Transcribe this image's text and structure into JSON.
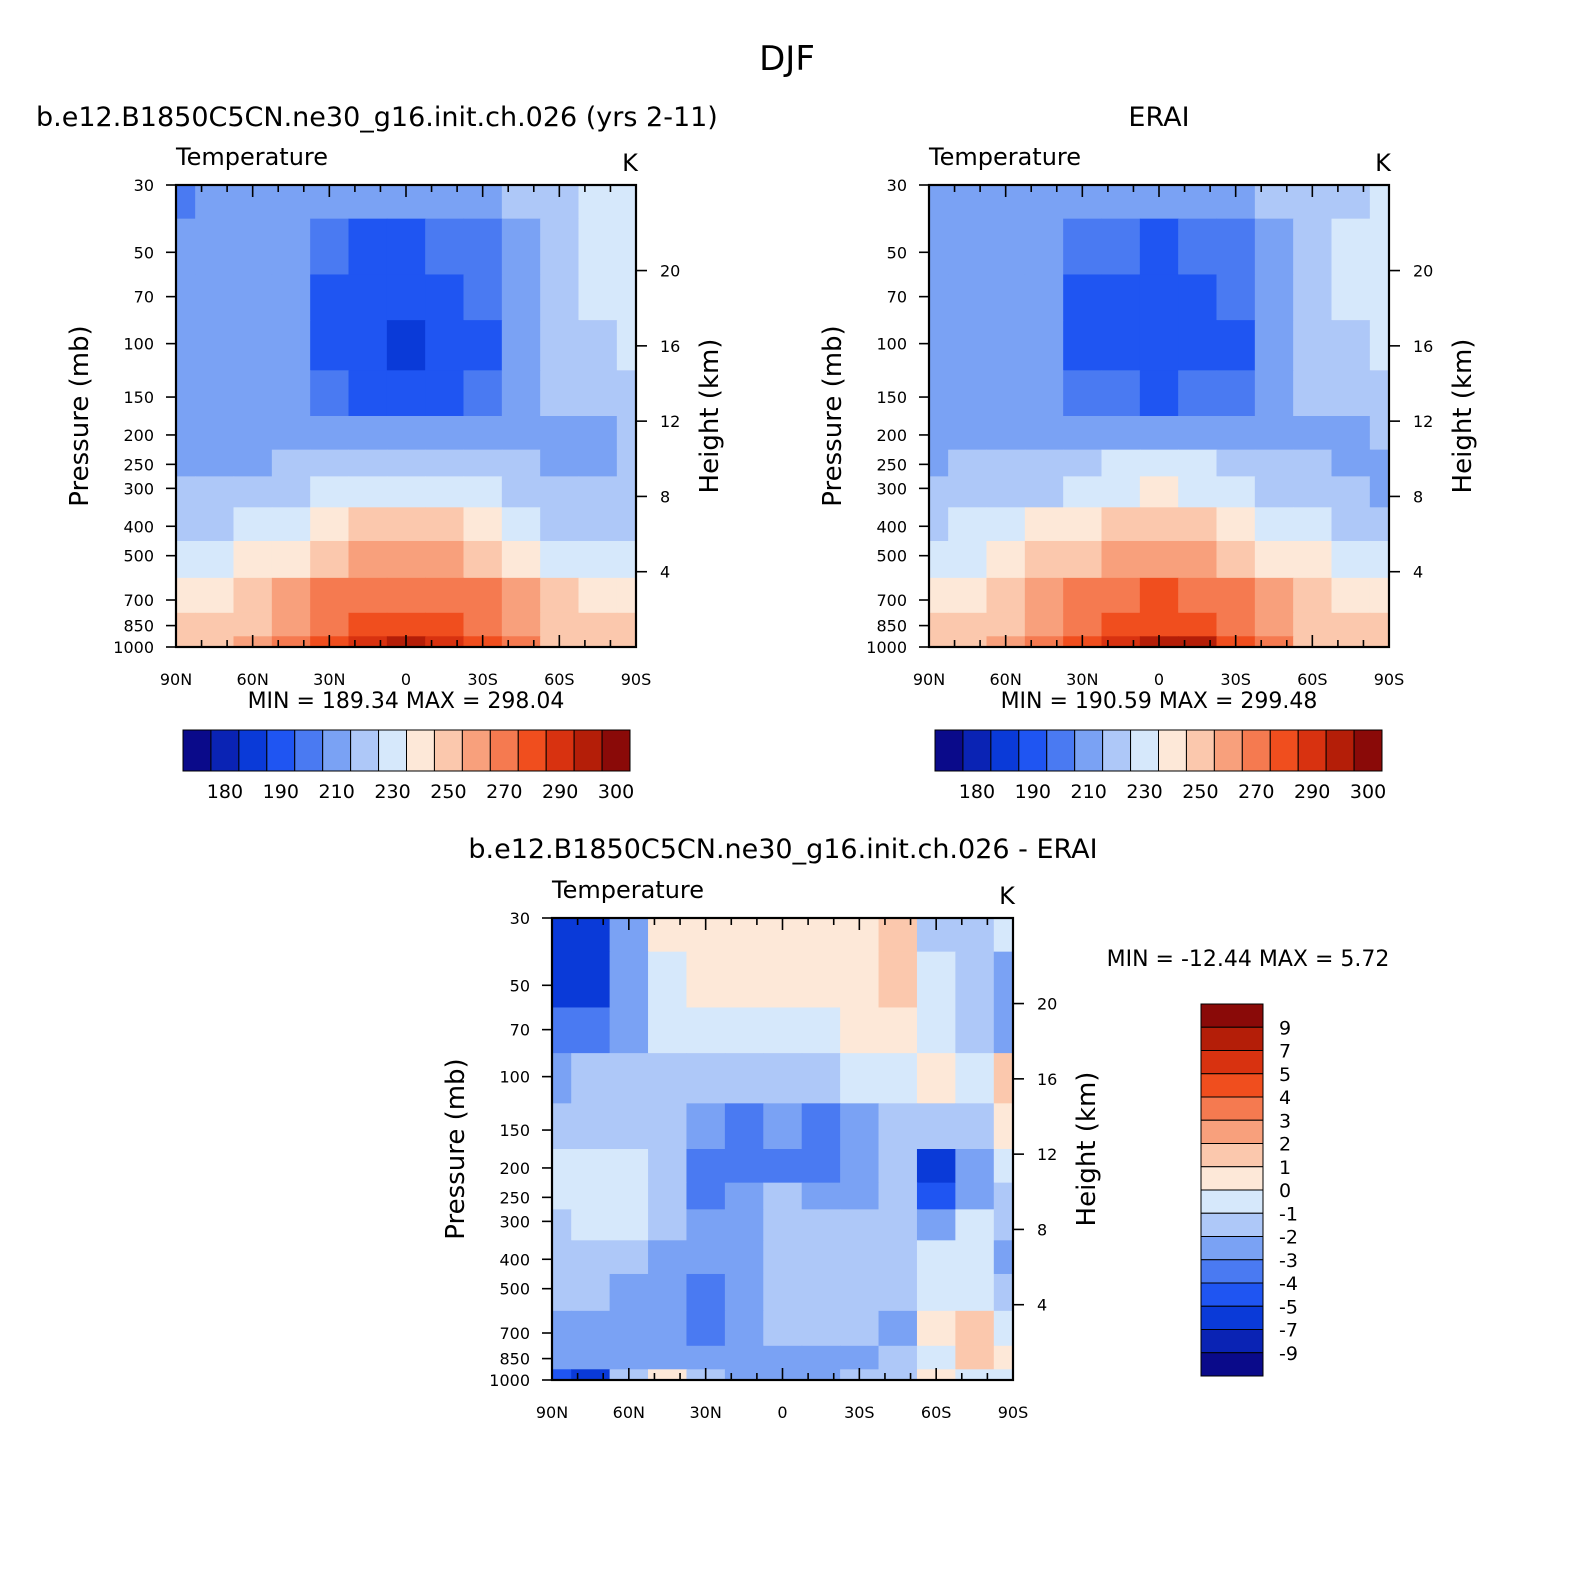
{
  "figure_title": "DJF",
  "colors": {
    "temperature_levels": [
      "#0a0a8a",
      "#0a23b4",
      "#0a3ad8",
      "#1f55f2",
      "#4a7af2",
      "#7aa2f4",
      "#aec8f8",
      "#d6e8fb",
      "#fde8d8",
      "#fbc8ad",
      "#f8a07c",
      "#f57a50",
      "#f04e1e",
      "#d83210",
      "#b41e08",
      "#8a0a08"
    ],
    "difference_levels": [
      "#0a0a8a",
      "#0a23b4",
      "#0a3ad8",
      "#1f55f2",
      "#4a7af2",
      "#7aa2f4",
      "#aec8f8",
      "#d6e8fb",
      "#fde8d8",
      "#fbc8ad",
      "#f8a07c",
      "#f57a50",
      "#f04e1e",
      "#d83210",
      "#b41e08",
      "#8a0a08"
    ]
  },
  "panels": [
    {
      "title": "b.e12.B1850C5CN.ne30_g16.init.ch.026 (yrs 2-11)",
      "variable_label": "Temperature",
      "units_label": "K",
      "ylabel": "Pressure (mb)",
      "ylabel_right": "Height (km)",
      "x_ticks": [
        "90N",
        "60N",
        "30N",
        "0",
        "30S",
        "60S",
        "90S"
      ],
      "y_ticks": [
        "30",
        "50",
        "70",
        "100",
        "150",
        "200",
        "250",
        "300",
        "400",
        "500",
        "700",
        "850",
        "1000"
      ],
      "y_ticks_right": [
        "20",
        "16",
        "12",
        "8",
        "4"
      ],
      "stats": "MIN = 189.34 MAX = 298.04",
      "colorbar_labels": [
        "180",
        "190",
        "210",
        "230",
        "250",
        "270",
        "290",
        "300"
      ]
    },
    {
      "title": "ERAI",
      "variable_label": "Temperature",
      "units_label": "K",
      "ylabel": "Pressure (mb)",
      "ylabel_right": "Height (km)",
      "x_ticks": [
        "90N",
        "60N",
        "30N",
        "0",
        "30S",
        "60S",
        "90S"
      ],
      "y_ticks": [
        "30",
        "50",
        "70",
        "100",
        "150",
        "200",
        "250",
        "300",
        "400",
        "500",
        "700",
        "850",
        "1000"
      ],
      "y_ticks_right": [
        "20",
        "16",
        "12",
        "8",
        "4"
      ],
      "stats": "MIN = 190.59 MAX = 299.48",
      "colorbar_labels": [
        "180",
        "190",
        "210",
        "230",
        "250",
        "270",
        "290",
        "300"
      ]
    },
    {
      "title": "b.e12.B1850C5CN.ne30_g16.init.ch.026 - ERAI",
      "variable_label": "Temperature",
      "units_label": "K",
      "ylabel": "Pressure (mb)",
      "ylabel_right": "Height (km)",
      "x_ticks": [
        "90N",
        "60N",
        "30N",
        "0",
        "30S",
        "60S",
        "90S"
      ],
      "y_ticks": [
        "30",
        "50",
        "70",
        "100",
        "150",
        "200",
        "250",
        "300",
        "400",
        "500",
        "700",
        "850",
        "1000"
      ],
      "y_ticks_right": [
        "20",
        "16",
        "12",
        "8",
        "4"
      ],
      "stats": "MIN = -12.44 MAX = 5.72",
      "colorbar_labels": [
        "9",
        "7",
        "5",
        "4",
        "3",
        "2",
        "1",
        "0",
        "-1",
        "-2",
        "-3",
        "-4",
        "-5",
        "-7",
        "-9"
      ]
    }
  ],
  "chart_data": [
    {
      "type": "heatmap",
      "title": "b.e12.B1850C5CN.ne30_g16.init.ch.026 (yrs 2-11)",
      "variable": "Temperature",
      "units": "K",
      "xlabel": "",
      "ylabel": "Pressure (mb)",
      "ylabel_right": "Height (km)",
      "x_values": [
        90,
        75,
        60,
        45,
        30,
        15,
        0,
        -15,
        -30,
        -45,
        -60,
        -75,
        -90
      ],
      "y_values": [
        30,
        50,
        70,
        100,
        150,
        200,
        250,
        300,
        400,
        500,
        700,
        850,
        1000
      ],
      "z": [
        [
          206,
          212,
          217,
          218,
          217,
          215,
          215,
          216,
          218,
          220,
          224,
          231,
          236
        ],
        [
          210,
          214,
          218,
          214,
          203,
          199,
          198,
          200,
          207,
          219,
          226,
          232,
          236
        ],
        [
          212,
          214,
          217,
          210,
          198,
          194,
          194,
          195,
          201,
          214,
          223,
          230,
          235
        ],
        [
          213,
          215,
          218,
          210,
          196,
          192,
          189,
          192,
          198,
          212,
          221,
          226,
          230
        ],
        [
          214,
          216,
          218,
          215,
          202,
          198,
          197,
          198,
          203,
          216,
          220,
          222,
          223
        ],
        [
          216,
          217,
          218,
          217,
          214,
          211,
          210,
          211,
          213,
          217,
          218,
          219,
          220
        ],
        [
          218,
          218,
          219,
          221,
          224,
          228,
          229,
          228,
          225,
          221,
          219,
          219,
          220
        ],
        [
          220,
          221,
          222,
          226,
          232,
          237,
          239,
          237,
          232,
          225,
          222,
          221,
          221
        ],
        [
          227,
          229,
          232,
          238,
          244,
          250,
          252,
          250,
          244,
          235,
          229,
          228,
          228
        ],
        [
          235,
          237,
          241,
          248,
          256,
          262,
          264,
          262,
          256,
          246,
          239,
          237,
          236
        ],
        [
          246,
          248,
          252,
          261,
          270,
          276,
          278,
          276,
          270,
          260,
          251,
          248,
          248
        ],
        [
          250,
          253,
          258,
          267,
          278,
          285,
          287,
          285,
          278,
          265,
          255,
          252,
          252
        ],
        [
          252,
          256,
          262,
          271,
          283,
          292,
          296,
          294,
          285,
          270,
          258,
          254,
          254
        ]
      ],
      "levels": [
        180,
        185,
        190,
        200,
        210,
        220,
        230,
        240,
        250,
        260,
        270,
        280,
        290,
        295,
        300
      ],
      "xlim": [
        90,
        -90
      ],
      "ylim": [
        1000,
        30
      ],
      "y_scale": "log",
      "min": 189.34,
      "max": 298.04
    },
    {
      "type": "heatmap",
      "title": "ERAI",
      "variable": "Temperature",
      "units": "K",
      "xlabel": "",
      "ylabel": "Pressure (mb)",
      "ylabel_right": "Height (km)",
      "x_values": [
        90,
        75,
        60,
        45,
        30,
        15,
        0,
        -15,
        -30,
        -45,
        -60,
        -75,
        -90
      ],
      "y_values": [
        30,
        50,
        70,
        100,
        150,
        200,
        250,
        300,
        400,
        500,
        700,
        850,
        1000
      ],
      "z": [
        [
          212,
          214,
          217,
          218,
          218,
          216,
          216,
          216,
          218,
          220,
          224,
          229,
          233
        ],
        [
          213,
          215,
          218,
          216,
          204,
          200,
          199,
          201,
          207,
          219,
          226,
          232,
          236
        ],
        [
          214,
          216,
          218,
          212,
          199,
          195,
          194,
          195,
          200,
          214,
          224,
          232,
          236
        ],
        [
          215,
          216,
          218,
          212,
          198,
          194,
          193,
          194,
          199,
          213,
          222,
          228,
          233
        ],
        [
          216,
          217,
          218,
          216,
          206,
          200,
          199,
          200,
          205,
          216,
          220,
          223,
          224
        ],
        [
          217,
          218,
          219,
          218,
          216,
          213,
          212,
          212,
          214,
          217,
          218,
          219,
          220
        ],
        [
          219,
          220,
          221,
          223,
          227,
          230,
          231,
          230,
          227,
          222,
          220,
          219,
          218
        ],
        [
          222,
          223,
          224,
          228,
          234,
          238,
          240,
          238,
          233,
          226,
          222,
          221,
          214
        ],
        [
          229,
          231,
          234,
          240,
          246,
          252,
          254,
          252,
          246,
          237,
          231,
          229,
          228
        ],
        [
          237,
          239,
          243,
          250,
          258,
          264,
          266,
          264,
          258,
          248,
          241,
          238,
          237
        ],
        [
          247,
          249,
          253,
          262,
          271,
          278,
          280,
          278,
          271,
          261,
          252,
          249,
          248
        ],
        [
          251,
          254,
          259,
          268,
          279,
          287,
          289,
          287,
          279,
          266,
          256,
          253,
          252
        ],
        [
          253,
          257,
          263,
          272,
          284,
          293,
          297,
          295,
          286,
          271,
          259,
          255,
          254
        ]
      ],
      "levels": [
        180,
        185,
        190,
        200,
        210,
        220,
        230,
        240,
        250,
        260,
        270,
        280,
        290,
        295,
        300
      ],
      "xlim": [
        90,
        -90
      ],
      "ylim": [
        1000,
        30
      ],
      "y_scale": "log",
      "min": 190.59,
      "max": 299.48
    },
    {
      "type": "heatmap",
      "title": "b.e12.B1850C5CN.ne30_g16.init.ch.026 - ERAI",
      "variable": "Temperature",
      "units": "K",
      "xlabel": "",
      "ylabel": "Pressure (mb)",
      "ylabel_right": "Height (km)",
      "x_values": [
        90,
        75,
        60,
        45,
        30,
        15,
        0,
        -15,
        -30,
        -45,
        -60,
        -75,
        -90
      ],
      "y_values": [
        30,
        50,
        70,
        100,
        150,
        200,
        250,
        300,
        400,
        500,
        700,
        850,
        1000
      ],
      "z": [
        [
          -6.5,
          -6,
          -2.5,
          0.5,
          0.8,
          0.5,
          0.7,
          0.6,
          0.8,
          1.2,
          -1.5,
          -1.5,
          -0.5
        ],
        [
          -6,
          -5.5,
          -2.8,
          -0.5,
          0.5,
          0.6,
          0.5,
          0.6,
          0.8,
          1.2,
          -0.5,
          -1.5,
          -2.5
        ],
        [
          -3.5,
          -3.2,
          -2.5,
          -0.8,
          -0.3,
          -0.5,
          -0.5,
          -0.3,
          0.3,
          0.8,
          -0.3,
          -1.5,
          -2.5
        ],
        [
          -2.2,
          -2,
          -1.8,
          -1.5,
          -1.5,
          -1.8,
          -1.8,
          -1.5,
          -0.5,
          -0.3,
          0.2,
          -0.3,
          1.2
        ],
        [
          -1.5,
          -1.2,
          -1.2,
          -1.5,
          -2.5,
          -3.5,
          -3,
          -3.5,
          -3,
          -1.5,
          -1.8,
          -1.2,
          0.5
        ],
        [
          -0.8,
          -0.8,
          -0.8,
          -1.2,
          -3.2,
          -3.5,
          -3.2,
          -3.5,
          -2.8,
          -2,
          -5.2,
          -2.5,
          -1
        ],
        [
          -0.8,
          -0.8,
          -0.7,
          -1.5,
          -3.5,
          -2.8,
          -2,
          -2.2,
          -2.5,
          -2,
          -4.8,
          -2.8,
          -1.5
        ],
        [
          -1.2,
          -1,
          -1,
          -2,
          -2.5,
          -2.5,
          -2,
          -1.5,
          -1.5,
          -2,
          -2.5,
          -0.8,
          -2
        ],
        [
          -1.5,
          -1.5,
          -2,
          -2.2,
          -2.5,
          -2.2,
          -1.5,
          -1.2,
          -1.5,
          -1.8,
          -0.8,
          -0.5,
          -2.5
        ],
        [
          -2,
          -2,
          -2.2,
          -2.5,
          -3.5,
          -2.5,
          -2,
          -1.5,
          -1.5,
          -1.8,
          -0.5,
          -0.5,
          -1.5
        ],
        [
          -2.5,
          -2.5,
          -2.3,
          -2.5,
          -3.5,
          -2.5,
          -2,
          -1.8,
          -2,
          -2.2,
          0.8,
          1.8,
          -0.5
        ],
        [
          -3,
          -3,
          -2.5,
          -2.5,
          -3,
          -2.5,
          -2.2,
          -2.3,
          -2.3,
          -2,
          -0.5,
          1.5,
          0.2
        ],
        [
          -5,
          -5.5,
          -1.5,
          0.8,
          -1.8,
          -2.2,
          -2.2,
          -2.2,
          -2,
          -2,
          0.2,
          -0.5,
          -0.8
        ]
      ],
      "levels": [
        -9,
        -7,
        -5,
        -4,
        -3,
        -2,
        -1,
        0,
        1,
        2,
        3,
        4,
        5,
        7,
        9
      ],
      "xlim": [
        90,
        -90
      ],
      "ylim": [
        1000,
        30
      ],
      "y_scale": "log",
      "min": -12.44,
      "max": 5.72
    }
  ]
}
